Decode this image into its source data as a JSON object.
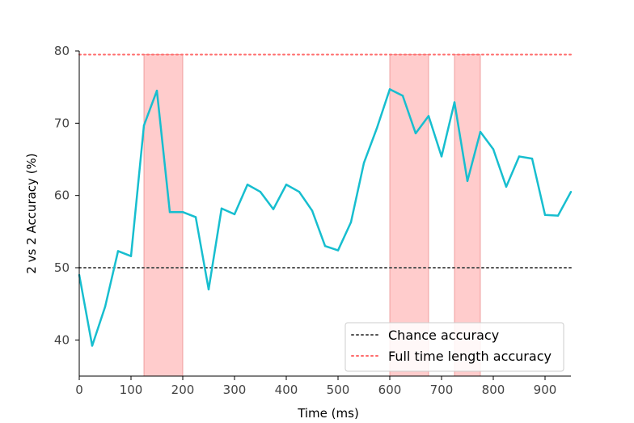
{
  "chart_data": {
    "type": "line",
    "title": "",
    "xlabel": "Time (ms)",
    "ylabel": "2 vs 2 Accuracy (%)",
    "xlim": [
      0,
      950
    ],
    "ylim": [
      35,
      80
    ],
    "xticks": [
      0,
      100,
      200,
      300,
      400,
      500,
      600,
      700,
      800,
      900
    ],
    "yticks": [
      40,
      50,
      60,
      70,
      80
    ],
    "grid": false,
    "legend_position": "lower-right",
    "series": [
      {
        "name": "",
        "color": "#17becf",
        "x": [
          0,
          25,
          50,
          75,
          100,
          125,
          150,
          175,
          200,
          225,
          250,
          275,
          300,
          325,
          350,
          375,
          400,
          425,
          450,
          475,
          500,
          525,
          550,
          575,
          600,
          625,
          650,
          675,
          700,
          725,
          750,
          775,
          800,
          825,
          850,
          875,
          900,
          925,
          950
        ],
        "y": [
          49.0,
          39.2,
          44.6,
          52.3,
          51.6,
          69.7,
          74.5,
          57.7,
          57.7,
          57.0,
          47.0,
          58.2,
          57.4,
          61.5,
          60.5,
          58.1,
          61.5,
          60.5,
          57.9,
          53.0,
          52.4,
          56.3,
          64.5,
          69.3,
          74.7,
          73.8,
          68.6,
          71.0,
          65.4,
          72.9,
          62.0,
          68.8,
          66.4,
          61.2,
          65.4,
          65.1,
          57.3,
          57.2,
          60.5
        ]
      }
    ],
    "reference_lines": [
      {
        "name": "Chance accuracy",
        "y": 50,
        "color": "#555555",
        "style": "dotted"
      },
      {
        "name": "Full time length accuracy",
        "y": 79.5,
        "color": "#ff6b6b",
        "style": "dotted"
      }
    ],
    "shaded_regions": [
      {
        "x_start": 125,
        "x_end": 200,
        "color": "#ff9999"
      },
      {
        "x_start": 600,
        "x_end": 675,
        "color": "#ff9999"
      },
      {
        "x_start": 725,
        "x_end": 775,
        "color": "#ff9999"
      }
    ],
    "legend": {
      "entries": [
        "Chance accuracy",
        "Full time length accuracy"
      ]
    }
  }
}
